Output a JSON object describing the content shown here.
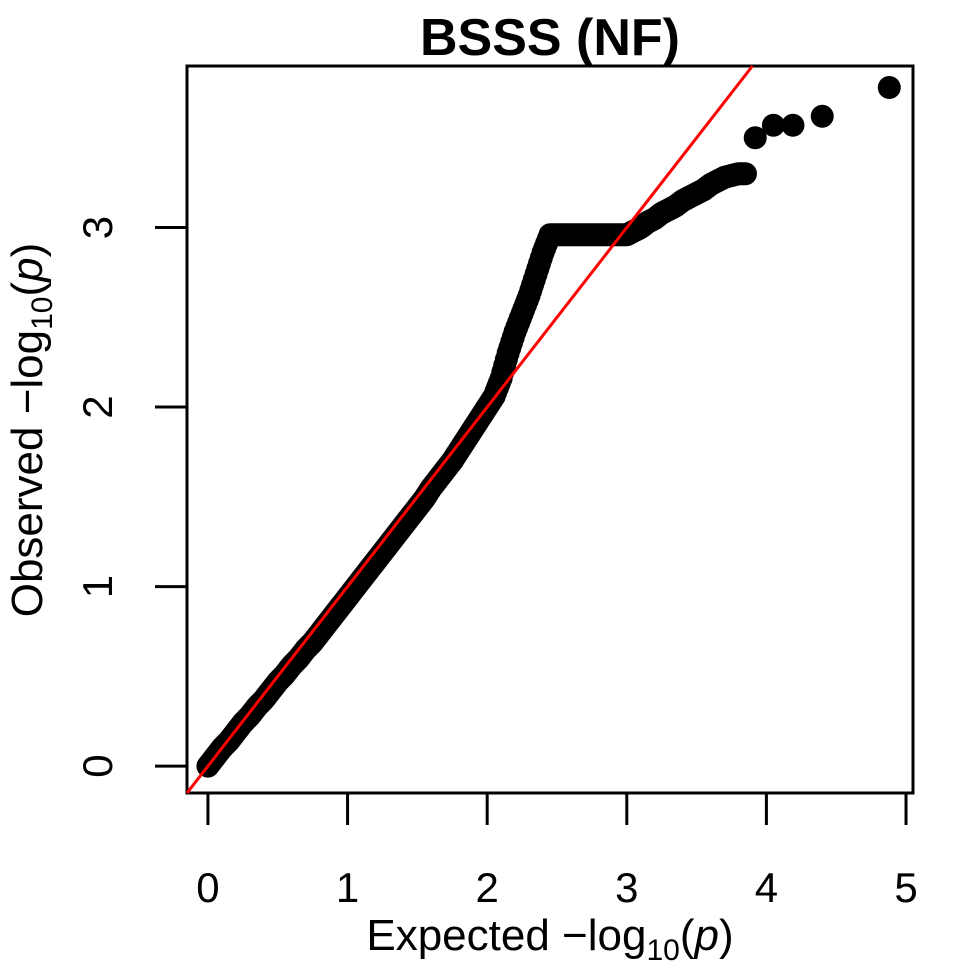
{
  "chart_data": {
    "type": "scatter",
    "title": "BSSS (NF)",
    "xlabel": {
      "prefix": "Expected  −log",
      "sub": "10",
      "open": "(",
      "var": "p",
      "close": ")"
    },
    "ylabel": {
      "prefix": "Observed  −log",
      "sub": "10",
      "open": "(",
      "var": "p",
      "close": ")"
    },
    "xlim": [
      -0.15,
      5.05
    ],
    "ylim": [
      -0.15,
      3.9
    ],
    "xticks": [
      0,
      1,
      2,
      3,
      4,
      5
    ],
    "yticks": [
      0,
      1,
      2,
      3
    ],
    "reference_line": {
      "slope": 1,
      "intercept": 0,
      "color": "#ff0000"
    },
    "point_color": "#000000",
    "series": [
      {
        "x": [
          0.0,
          0.05,
          0.1,
          0.15,
          0.2,
          0.25,
          0.3,
          0.35,
          0.4,
          0.45,
          0.5,
          0.55,
          0.6,
          0.65,
          0.7,
          0.75,
          0.8,
          0.85,
          0.9,
          0.95,
          1.0,
          1.05,
          1.1,
          1.15,
          1.2,
          1.25,
          1.3,
          1.35,
          1.4,
          1.45,
          1.5,
          1.55,
          1.6,
          1.65,
          1.7,
          1.75,
          1.8,
          1.85,
          1.9,
          1.95,
          2.0,
          2.05,
          2.1,
          2.15,
          2.2,
          2.25,
          2.3,
          2.35,
          2.4,
          2.45,
          2.5,
          2.55,
          2.6,
          2.65,
          2.7,
          2.75,
          2.8,
          2.85,
          2.9,
          2.95,
          3.0,
          3.05,
          3.1,
          3.15,
          3.2,
          3.25,
          3.3,
          3.35,
          3.4,
          3.45,
          3.5,
          3.55,
          3.6,
          3.65,
          3.7,
          3.75,
          3.8,
          3.85,
          3.92,
          4.05,
          4.19,
          4.4,
          4.88
        ],
        "y": [
          0.0,
          0.05,
          0.1,
          0.14,
          0.19,
          0.24,
          0.28,
          0.33,
          0.37,
          0.42,
          0.47,
          0.51,
          0.56,
          0.6,
          0.65,
          0.69,
          0.74,
          0.79,
          0.84,
          0.89,
          0.94,
          0.99,
          1.04,
          1.09,
          1.14,
          1.19,
          1.24,
          1.29,
          1.34,
          1.39,
          1.44,
          1.49,
          1.55,
          1.6,
          1.65,
          1.7,
          1.76,
          1.82,
          1.88,
          1.94,
          2.0,
          2.06,
          2.16,
          2.3,
          2.42,
          2.52,
          2.62,
          2.74,
          2.86,
          2.96,
          2.96,
          2.96,
          2.96,
          2.96,
          2.96,
          2.96,
          2.96,
          2.96,
          2.96,
          2.96,
          2.96,
          2.98,
          3.0,
          3.03,
          3.05,
          3.08,
          3.1,
          3.12,
          3.15,
          3.17,
          3.19,
          3.21,
          3.24,
          3.26,
          3.28,
          3.29,
          3.3,
          3.3,
          3.5,
          3.57,
          3.57,
          3.62,
          3.78
        ]
      }
    ]
  }
}
